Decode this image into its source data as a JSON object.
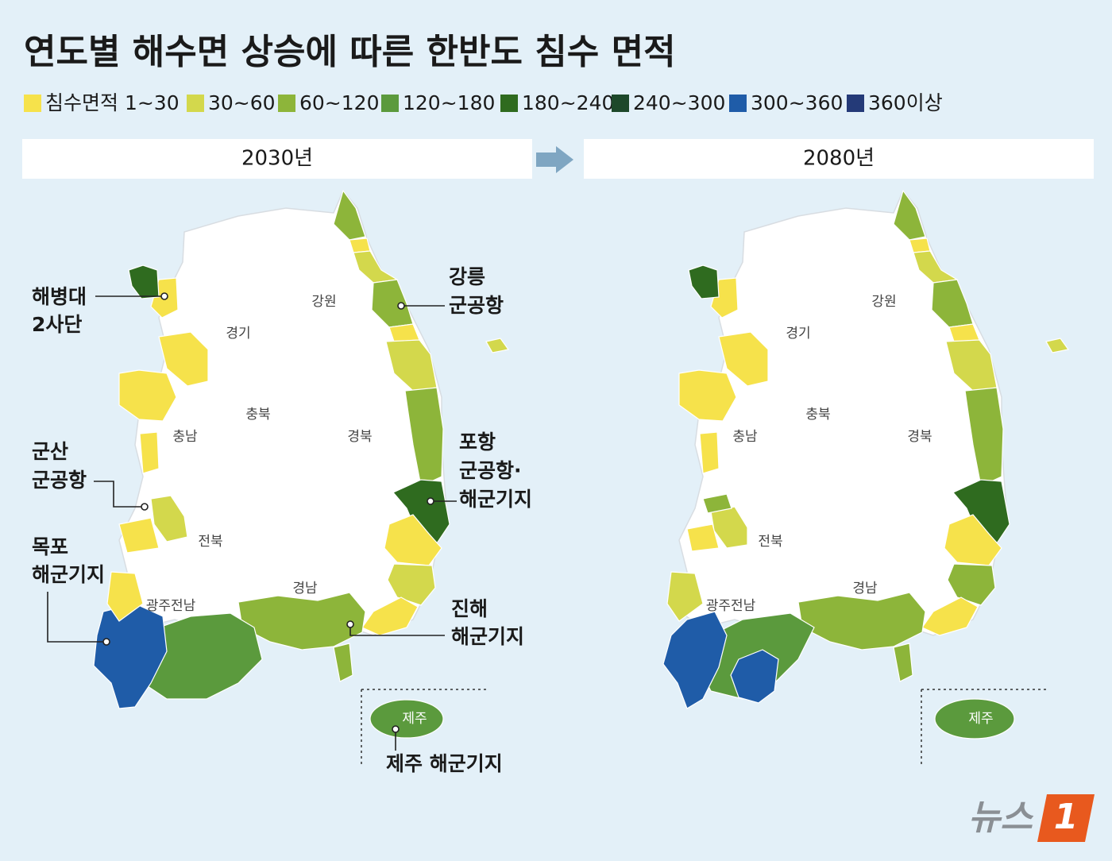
{
  "title": "연도별 해수면 상승에 따른 한반도 침수 면적",
  "legend": [
    {
      "label": "침수면적 1~30",
      "color": "#f6e24b"
    },
    {
      "label": "30~60",
      "color": "#d3d84c"
    },
    {
      "label": "60~120",
      "color": "#8db53a"
    },
    {
      "label": "120~180",
      "color": "#5b9a3d"
    },
    {
      "label": "180~240",
      "color": "#2f6b1f"
    },
    {
      "label": "240~300",
      "color": "#1d482a"
    },
    {
      "label": "300~360",
      "color": "#1f5ca8"
    },
    {
      "label": "360이상",
      "color": "#243a78"
    }
  ],
  "maps": [
    {
      "year": "2030년",
      "regions": [
        "강원",
        "경기",
        "충북",
        "충남",
        "경북",
        "전북",
        "경남",
        "광주전남",
        "제주"
      ]
    },
    {
      "year": "2080년",
      "regions": [
        "강원",
        "경기",
        "충북",
        "충남",
        "경북",
        "전북",
        "경남",
        "광주전남",
        "제주"
      ]
    }
  ],
  "callouts": [
    {
      "lines": [
        "해병대",
        "2사단"
      ]
    },
    {
      "lines": [
        "강릉",
        "군공항"
      ]
    },
    {
      "lines": [
        "군산",
        "군공항"
      ]
    },
    {
      "lines": [
        "포항",
        "군공항·",
        "해군기지"
      ]
    },
    {
      "lines": [
        "목포",
        "해군기지"
      ]
    },
    {
      "lines": [
        "진해",
        "해군기지"
      ]
    },
    {
      "lines": [
        "제주 해군기지"
      ]
    }
  ],
  "logo": {
    "text": "뉴스",
    "mark": "1"
  }
}
